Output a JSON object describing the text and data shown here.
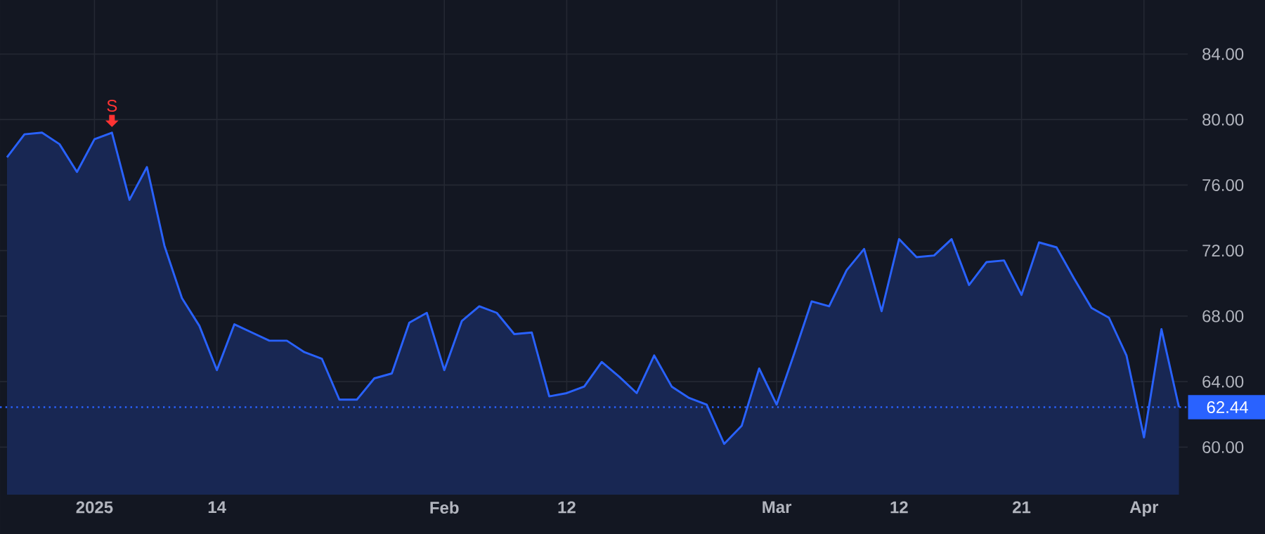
{
  "chart_data": {
    "type": "area",
    "categories": [
      null,
      null,
      null,
      null,
      null,
      "2025",
      null,
      null,
      null,
      null,
      null,
      null,
      "14",
      null,
      null,
      null,
      null,
      null,
      null,
      null,
      null,
      null,
      null,
      null,
      null,
      "Feb",
      null,
      null,
      null,
      null,
      null,
      null,
      "12",
      null,
      null,
      null,
      null,
      null,
      null,
      null,
      null,
      null,
      null,
      null,
      "Mar",
      null,
      null,
      null,
      null,
      null,
      null,
      "12",
      null,
      null,
      null,
      null,
      null,
      null,
      "21",
      null,
      null,
      null,
      null,
      null,
      null,
      "Apr",
      null,
      null
    ],
    "series": [
      {
        "color": "#2962ff",
        "values": [
          77.7,
          79.1,
          79.2,
          78.5,
          76.8,
          78.8,
          79.2,
          75.1,
          77.1,
          72.3,
          69.1,
          67.4,
          64.7,
          67.5,
          67.0,
          66.5,
          66.5,
          65.8,
          65.4,
          62.9,
          62.9,
          64.2,
          64.5,
          67.6,
          68.2,
          64.7,
          67.7,
          68.6,
          68.2,
          66.9,
          67.0,
          63.1,
          63.3,
          63.7,
          65.2,
          64.3,
          63.3,
          65.6,
          63.7,
          63.0,
          62.6,
          60.2,
          61.3,
          64.8,
          62.6,
          65.7,
          68.9,
          68.6,
          70.8,
          72.1,
          68.3,
          72.7,
          71.6,
          71.7,
          72.7,
          69.9,
          71.3,
          71.4,
          69.3,
          72.5,
          72.2,
          70.3,
          68.5,
          67.9,
          65.6,
          60.6,
          67.2,
          62.44
        ]
      }
    ],
    "ylim": [
      57.1,
      87.3
    ],
    "yticks": [
      {
        "value": 60,
        "label": "60.00"
      },
      {
        "value": 64,
        "label": "64.00"
      },
      {
        "value": 68,
        "label": "68.00"
      },
      {
        "value": 72,
        "label": "72.00"
      },
      {
        "value": 76,
        "label": "76.00"
      },
      {
        "value": 80,
        "label": "80.00"
      },
      {
        "value": 84,
        "label": "84.00"
      }
    ],
    "grid": true,
    "ref_lines": [
      {
        "axis": "y",
        "value": 62.44,
        "label": "62.44",
        "color": "#2962ff",
        "line_style": "dotted"
      }
    ],
    "annotations": [
      {
        "text": "S",
        "y": 79.2
      }
    ]
  }
}
